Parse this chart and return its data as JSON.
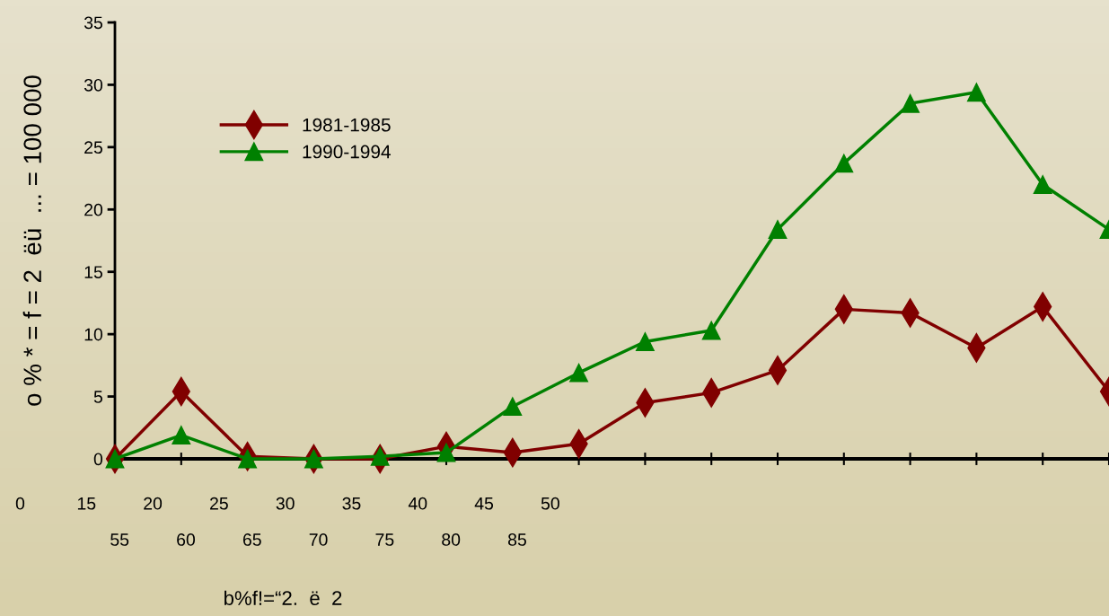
{
  "chart_data": {
    "type": "line",
    "ylabel": "o % * = f = 2  ëü  ... = 100 000",
    "categories": [
      null,
      null,
      null,
      null,
      null,
      null,
      null,
      null,
      null,
      null,
      null,
      null,
      null,
      null,
      null,
      null
    ],
    "series": [
      {
        "name": "1981-1985",
        "color": "#800000",
        "marker": "diamond",
        "values": [
          0,
          5.4,
          0.2,
          0,
          0,
          1.0,
          0.5,
          1.2,
          4.5,
          5.3,
          7.1,
          12.0,
          11.7,
          8.9,
          12.2,
          5.4
        ]
      },
      {
        "name": "1990-1994",
        "color": "#008000",
        "marker": "triangle",
        "values": [
          0,
          1.9,
          0,
          0,
          0.2,
          0.5,
          4.2,
          6.9,
          9.4,
          10.3,
          18.4,
          23.7,
          28.5,
          29.4,
          22.0,
          18.4
        ]
      }
    ],
    "ylim": [
      0,
      35
    ],
    "yticks": [
      0,
      5,
      10,
      15,
      20,
      25,
      30,
      35
    ],
    "grid": false,
    "legend": "top left",
    "annotations": [
      "b%f!=“2.  ë  2",
      "0",
      "15",
      "20",
      "25",
      "30",
      "35",
      "40",
      "45",
      "50",
      "55",
      "60",
      "65",
      "70",
      "75",
      "80",
      "85"
    ]
  }
}
